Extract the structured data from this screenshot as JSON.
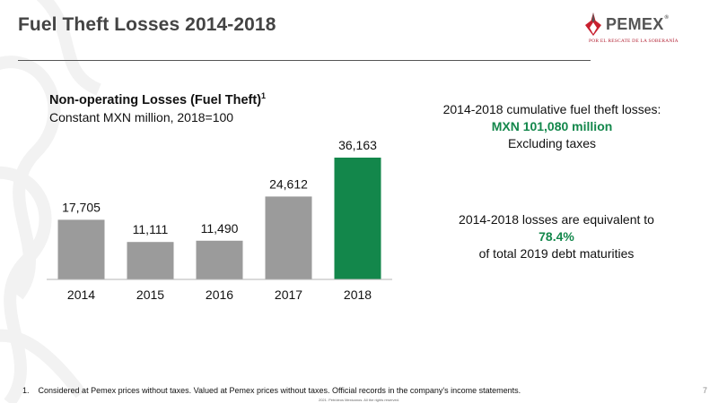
{
  "slide": {
    "title": "Fuel Theft Losses 2014-2018",
    "page_number": "7"
  },
  "logo": {
    "wordmark": "PEMEX",
    "registered_mark": "®",
    "tagline": "POR EL RESCATE DE LA SOBERANÍA"
  },
  "chart_data": {
    "type": "bar",
    "title": "Non-operating Losses (Fuel Theft)",
    "title_footnote_marker": "1",
    "subtitle": "Constant MXN million, 2018=100",
    "categories": [
      "2014",
      "2015",
      "2016",
      "2017",
      "2018"
    ],
    "values": [
      17705,
      11111,
      11490,
      24612,
      36163
    ],
    "value_labels": [
      "17,705",
      "11,111",
      "11,490",
      "24,612",
      "36,163"
    ],
    "bar_color": "#9b9b9b",
    "highlight_color": "#13874b",
    "highlight_index": 4,
    "ylim": [
      0,
      36163
    ],
    "grid": false,
    "legend": "none"
  },
  "callouts": {
    "cumulative": {
      "line1": "2014-2018 cumulative fuel theft losses:",
      "highlight": "MXN 101,080 million",
      "line3": "Excluding taxes"
    },
    "debt": {
      "line1": "2014-2018 losses are equivalent to",
      "highlight": "78.4%",
      "line3": "of total 2019 debt maturities"
    }
  },
  "footnote": {
    "marker": "1.",
    "text": "Considered at Pemex prices without taxes. Valued at Pemex prices without taxes. Official records in the company's income statements."
  },
  "copyright": "2021. Petróleos Mexicanos. All the rights reserved."
}
